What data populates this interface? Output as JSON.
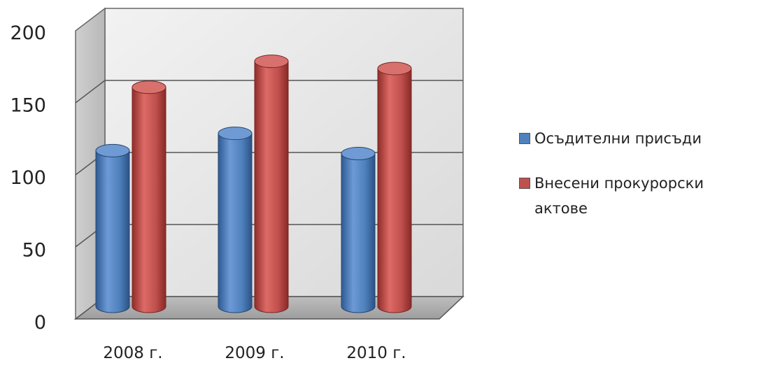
{
  "chart_data": {
    "type": "bar",
    "categories": [
      "2008 г.",
      "2009 г.",
      "2010 г."
    ],
    "series": [
      {
        "name": "Осъдителни присъди",
        "values": [
          110,
          122,
          108
        ],
        "color": "#4f81bd"
      },
      {
        "name": "Внесени прокурорски актове",
        "values": [
          154,
          172,
          167
        ],
        "color": "#c0504d"
      }
    ],
    "ylim": [
      0,
      200
    ],
    "yticks": [
      "0",
      "50",
      "100",
      "150",
      "200"
    ],
    "grid": true,
    "legend_position": "right",
    "style": "3d-cylinder"
  }
}
